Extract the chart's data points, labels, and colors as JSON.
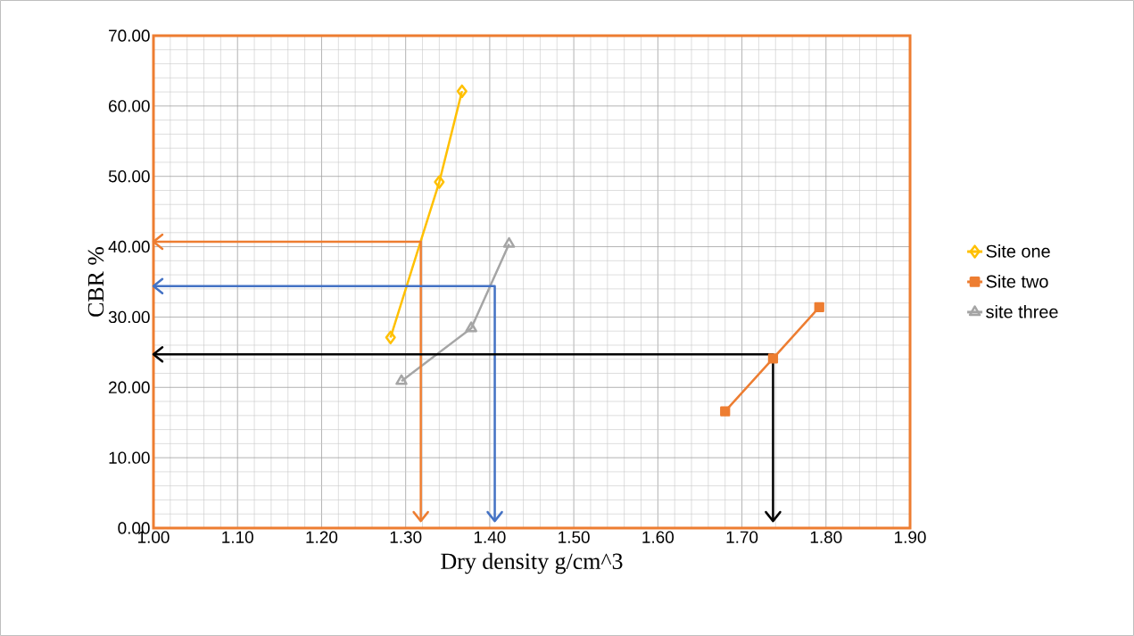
{
  "chart_data": {
    "type": "line",
    "xlabel": "Dry density g/cm^3",
    "ylabel": "CBR %",
    "xlim": [
      1.0,
      1.9
    ],
    "ylim": [
      0,
      70
    ],
    "xticks": [
      {
        "value": 1.0,
        "label": "1.00"
      },
      {
        "value": 1.1,
        "label": "1.10"
      },
      {
        "value": 1.2,
        "label": "1.20"
      },
      {
        "value": 1.3,
        "label": "1.30"
      },
      {
        "value": 1.4,
        "label": "1.40"
      },
      {
        "value": 1.5,
        "label": "1.50"
      },
      {
        "value": 1.6,
        "label": "1.60"
      },
      {
        "value": 1.7,
        "label": "1.70"
      },
      {
        "value": 1.8,
        "label": "1.80"
      },
      {
        "value": 1.9,
        "label": "1.90"
      }
    ],
    "yticks": [
      {
        "value": 0,
        "label": "0.00"
      },
      {
        "value": 10,
        "label": "10.00"
      },
      {
        "value": 20,
        "label": "20.00"
      },
      {
        "value": 30,
        "label": "30.00"
      },
      {
        "value": 40,
        "label": "40.00"
      },
      {
        "value": 50,
        "label": "50.00"
      },
      {
        "value": 60,
        "label": "60.00"
      },
      {
        "value": 70,
        "label": "70.00"
      }
    ],
    "grid": true,
    "legend": "right",
    "series": [
      {
        "name": "Site one",
        "color": "#ffc000",
        "marker": "diamond",
        "x": [
          1.282,
          1.34,
          1.367
        ],
        "values": [
          27.1,
          49.2,
          62.1
        ]
      },
      {
        "name": "Site two",
        "color": "#ed7d31",
        "marker": "square",
        "x": [
          1.68,
          1.737,
          1.792
        ],
        "values": [
          16.6,
          24.1,
          31.4
        ]
      },
      {
        "name": "site three",
        "color": "#a5a5a5",
        "marker": "triangle",
        "x": [
          1.295,
          1.378,
          1.423
        ],
        "values": [
          20.9,
          28.4,
          40.4
        ]
      },
      {
        "color": "#ed7d31",
        "marker": "none",
        "x": [
          1.0,
          1.318,
          1.318
        ],
        "values": [
          40.7,
          40.7,
          1.0
        ]
      },
      {
        "color": "#4472c4",
        "marker": "none",
        "x": [
          1.0,
          1.406,
          1.406
        ],
        "values": [
          34.4,
          34.4,
          1.0
        ]
      },
      {
        "color": "#000000",
        "marker": "none",
        "x": [
          1.0,
          1.737,
          1.737
        ],
        "values": [
          24.7,
          24.7,
          1.0
        ]
      }
    ]
  }
}
